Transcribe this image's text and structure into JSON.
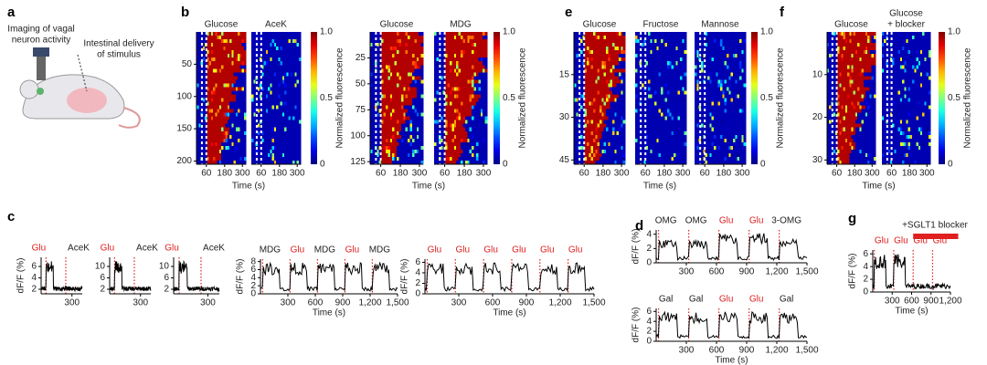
{
  "a": {
    "label": "a",
    "imaging": [
      "Imaging of vagal",
      "neuron activity"
    ],
    "delivery": [
      "Intestinal delivery",
      "of stimulus"
    ]
  },
  "heatmap": {
    "xticks": [
      "60",
      "180",
      "300"
    ],
    "xlabel": "Time (s)",
    "colorbar_ticks": [
      "1.0",
      "0.5",
      "0"
    ],
    "colorbar_label": "Normalized fluorescence"
  },
  "b": {
    "label": "b",
    "groups": [
      {
        "titles": [
          [
            "Glucose"
          ],
          [
            "AceK"
          ]
        ],
        "yticks": [
          "50",
          "100",
          "150",
          "200"
        ]
      },
      {
        "titles": [
          [
            "Glucose"
          ],
          [
            "MDG"
          ]
        ],
        "yticks": [
          "25",
          "50",
          "75",
          "100",
          "125"
        ]
      }
    ]
  },
  "e": {
    "label": "e",
    "groups": [
      {
        "titles": [
          [
            "Glucose"
          ],
          [
            "Fructose"
          ],
          [
            "Mannose"
          ]
        ],
        "yticks": [
          "15",
          "30",
          "45"
        ]
      }
    ]
  },
  "f": {
    "label": "f",
    "groups": [
      {
        "titles": [
          [
            "Glucose"
          ],
          [
            "Glucose",
            "+ blocker"
          ]
        ],
        "yticks": [
          "10",
          "20",
          "30"
        ]
      }
    ]
  },
  "trace_ylabel": "dF/F (%)",
  "c": {
    "label": "c",
    "plots": [
      {
        "stimuli": [
          "Glu",
          "AceK"
        ],
        "yticks": [
          "2",
          "4",
          "6"
        ],
        "xticks": [
          "300"
        ]
      },
      {
        "stimuli": [
          "Glu",
          "AceK"
        ],
        "yticks": [
          "2",
          "6",
          "10"
        ],
        "xticks": [
          "300"
        ]
      },
      {
        "stimuli": [
          "Glu",
          "AceK"
        ],
        "yticks": [
          "2",
          "6",
          "10"
        ],
        "xticks": [
          "300"
        ]
      },
      {
        "stimuli": [
          "MDG",
          "Glu",
          "MDG",
          "Glu",
          "MDG"
        ],
        "yticks": [
          "0",
          "2",
          "4",
          "6",
          "8"
        ],
        "xticks": [
          "300",
          "600",
          "900",
          "1,200",
          "1,500"
        ],
        "xlabel": "Time (s)"
      },
      {
        "stimuli": [
          "Glu",
          "Glu",
          "Glu",
          "Glu",
          "Glu",
          "Glu"
        ],
        "yticks": [
          "0",
          "2",
          "4",
          "6"
        ],
        "xticks": [
          "300",
          "600",
          "900",
          "1,200",
          "1,500"
        ],
        "xlabel": "Time (s)"
      }
    ]
  },
  "d": {
    "label": "d",
    "plots": [
      {
        "stimuli": [
          "OMG",
          "OMG",
          "Glu",
          "Glu",
          "3-OMG"
        ],
        "yticks": [
          "0",
          "2",
          "4"
        ],
        "xticks": [
          "300",
          "600",
          "900",
          "1,200",
          "1,500"
        ]
      },
      {
        "stimuli": [
          "Gal",
          "Gal",
          "Glu",
          "Glu",
          "Gal"
        ],
        "yticks": [
          "0",
          "2",
          "4",
          "6"
        ],
        "xticks": [
          "300",
          "600",
          "900",
          "1,200",
          "1,500"
        ],
        "xlabel": "Time (s)"
      }
    ]
  },
  "g": {
    "label": "g",
    "blocker": "+SGLT1 blocker",
    "plots": [
      {
        "stimuli": [
          "Glu",
          "Glu",
          "Glu",
          "Glu"
        ],
        "yticks": [
          "0",
          "2",
          "4",
          "6"
        ],
        "xticks": [
          "300",
          "600",
          "900",
          "1,200"
        ],
        "xlabel": "Time (s)"
      }
    ]
  }
}
